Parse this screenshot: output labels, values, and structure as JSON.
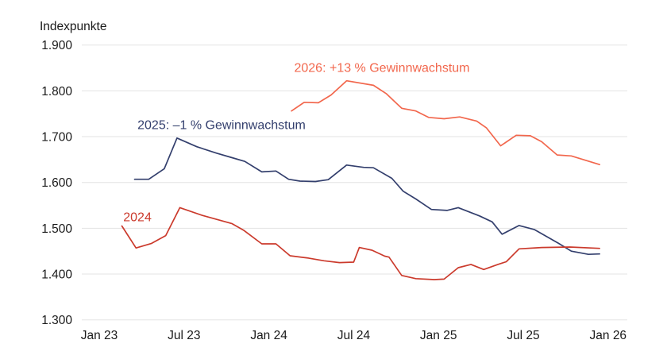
{
  "page": {
    "background": "#ffffff",
    "text_color": "#1a1a1a",
    "grid_color": "#e3e3e3"
  },
  "chart_data": {
    "type": "line",
    "title": "",
    "unit_label": "Indexpunkte",
    "grid": "horizontal-only",
    "legend_position": "inline-annotations",
    "x_axis": {
      "ticks": [
        "Jan 23",
        "Jul 23",
        "Jan 24",
        "Jul 24",
        "Jan 25",
        "Jul 25",
        "Jan 26"
      ],
      "tick_months": [
        0,
        6,
        12,
        18,
        24,
        30,
        36
      ],
      "range_months": [
        0,
        36
      ]
    },
    "y_axis": {
      "tick_labels": [
        "1.900",
        "1.800",
        "1.700",
        "1.600",
        "1.500",
        "1.400",
        "1.300"
      ],
      "tick_values": [
        1900,
        1800,
        1700,
        1600,
        1500,
        1400,
        1300
      ],
      "min": 1300,
      "max": 1900
    },
    "series": [
      {
        "id": "2025",
        "annotation": "2025: –1 % Gewinnwachstum",
        "color": "#333f6d",
        "annotation_anchor": {
          "month": 8.65,
          "value": 1725
        },
        "points": [
          [
            2.5,
            1607
          ],
          [
            3.5,
            1607
          ],
          [
            4.6,
            1630
          ],
          [
            5.5,
            1697
          ],
          [
            6.9,
            1678
          ],
          [
            8.3,
            1664
          ],
          [
            9.3,
            1655
          ],
          [
            10.3,
            1646
          ],
          [
            11.5,
            1623
          ],
          [
            12.5,
            1625
          ],
          [
            13.4,
            1607
          ],
          [
            14.2,
            1603
          ],
          [
            15.3,
            1602
          ],
          [
            16.2,
            1606
          ],
          [
            17.5,
            1638
          ],
          [
            18.7,
            1633
          ],
          [
            19.4,
            1632
          ],
          [
            20.7,
            1609
          ],
          [
            21.5,
            1581
          ],
          [
            22.4,
            1564
          ],
          [
            23.5,
            1541
          ],
          [
            24.6,
            1539
          ],
          [
            25.4,
            1545
          ],
          [
            26.9,
            1527
          ],
          [
            27.8,
            1514
          ],
          [
            28.5,
            1487
          ],
          [
            29.7,
            1506
          ],
          [
            30.8,
            1497
          ],
          [
            32.5,
            1467
          ],
          [
            33.4,
            1450
          ],
          [
            34.6,
            1443
          ],
          [
            35.4,
            1444
          ]
        ]
      },
      {
        "id": "2024",
        "annotation": "2024",
        "color": "#cb3a2c",
        "annotation_anchor": {
          "month": 2.7,
          "value": 1524
        },
        "points": [
          [
            1.6,
            1505
          ],
          [
            2.6,
            1457
          ],
          [
            3.7,
            1467
          ],
          [
            4.7,
            1484
          ],
          [
            5.7,
            1545
          ],
          [
            7.3,
            1528
          ],
          [
            9.4,
            1510
          ],
          [
            10.2,
            1496
          ],
          [
            11.5,
            1466
          ],
          [
            12.5,
            1466
          ],
          [
            13.5,
            1440
          ],
          [
            14.8,
            1435
          ],
          [
            15.9,
            1429
          ],
          [
            17.0,
            1425
          ],
          [
            18.0,
            1426
          ],
          [
            18.4,
            1458
          ],
          [
            19.3,
            1452
          ],
          [
            20.2,
            1439
          ],
          [
            20.5,
            1437
          ],
          [
            21.4,
            1397
          ],
          [
            22.4,
            1390
          ],
          [
            23.7,
            1388
          ],
          [
            24.4,
            1389
          ],
          [
            25.4,
            1414
          ],
          [
            26.3,
            1421
          ],
          [
            27.2,
            1410
          ],
          [
            28.2,
            1421
          ],
          [
            28.8,
            1427
          ],
          [
            29.7,
            1455
          ],
          [
            31.3,
            1458
          ],
          [
            33.3,
            1459
          ],
          [
            35.4,
            1456
          ]
        ]
      },
      {
        "id": "2026",
        "annotation": "2026: +13 % Gewinnwachstum",
        "color": "#f2674d",
        "annotation_anchor": {
          "month": 20.0,
          "value": 1850
        },
        "points": [
          [
            13.6,
            1756
          ],
          [
            14.5,
            1775
          ],
          [
            15.5,
            1774
          ],
          [
            16.4,
            1791
          ],
          [
            17.5,
            1822
          ],
          [
            19.4,
            1812
          ],
          [
            20.3,
            1794
          ],
          [
            21.4,
            1762
          ],
          [
            22.4,
            1756
          ],
          [
            23.3,
            1742
          ],
          [
            24.4,
            1739
          ],
          [
            25.5,
            1743
          ],
          [
            26.7,
            1734
          ],
          [
            27.4,
            1719
          ],
          [
            28.4,
            1680
          ],
          [
            29.5,
            1703
          ],
          [
            30.5,
            1702
          ],
          [
            31.3,
            1689
          ],
          [
            32.4,
            1660
          ],
          [
            33.4,
            1658
          ],
          [
            35.4,
            1639
          ]
        ]
      }
    ]
  }
}
